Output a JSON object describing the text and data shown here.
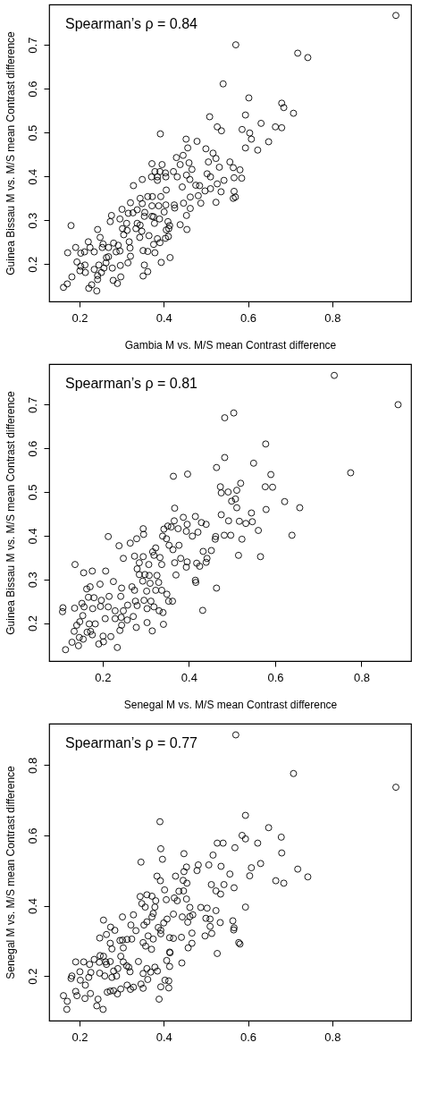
{
  "chart_data": [
    {
      "type": "scatter",
      "xlabel": "Gambia M vs. M/S mean Contrast difference",
      "ylabel": "Guinea Bissau M vs. M/S mean Contrast difference",
      "annotations": [
        "Spearman’s ρ = 0.84"
      ],
      "xlim": [
        0.128,
        0.987
      ],
      "ylim": [
        0.115,
        0.792
      ],
      "xticks": [
        0.2,
        0.4,
        0.6,
        0.8
      ],
      "yticks": [
        0.2,
        0.3,
        0.4,
        0.5,
        0.6,
        0.7
      ],
      "grid": false,
      "marker": "circle",
      "x": [
        0.951,
        0.571,
        0.718,
        0.742,
        0.541,
        0.602,
        0.68,
        0.685,
        0.708,
        0.594,
        0.509,
        0.631,
        0.527,
        0.537,
        0.665,
        0.68,
        0.586,
        0.604,
        0.392,
        0.608,
        0.649,
        0.623,
        0.594,
        0.453,
        0.479,
        0.457,
        0.5,
        0.517,
        0.524,
        0.506,
        0.532,
        0.446,
        0.43,
        0.439,
        0.46,
        0.467,
        0.557,
        0.565,
        0.581,
        0.585,
        0.567,
        0.543,
        0.527,
        0.503,
        0.511,
        0.498,
        0.511,
        0.536,
        0.567,
        0.565,
        0.57,
        0.524,
        0.488,
        0.482,
        0.476,
        0.485,
        0.463,
        0.463,
        0.454,
        0.455,
        0.439,
        0.447,
        0.444,
        0.462,
        0.454,
        0.432,
        0.423,
        0.406,
        0.404,
        0.396,
        0.405,
        0.385,
        0.371,
        0.379,
        0.372,
        0.349,
        0.328,
        0.385,
        0.391,
        0.344,
        0.362,
        0.373,
        0.393,
        0.349,
        0.372,
        0.388,
        0.405,
        0.425,
        0.426,
        0.401,
        0.39,
        0.376,
        0.372,
        0.355,
        0.354,
        0.378,
        0.337,
        0.321,
        0.327,
        0.301,
        0.316,
        0.276,
        0.273,
        0.296,
        0.312,
        0.337,
        0.313,
        0.302,
        0.305,
        0.318,
        0.32,
        0.321,
        0.315,
        0.297,
        0.298,
        0.28,
        0.29,
        0.278,
        0.287,
        0.281,
        0.292,
        0.296,
        0.269,
        0.263,
        0.269,
        0.256,
        0.249,
        0.243,
        0.254,
        0.235,
        0.225,
        0.221,
        0.212,
        0.203,
        0.191,
        0.172,
        0.18,
        0.194,
        0.203,
        0.213,
        0.214,
        0.201,
        0.182,
        0.171,
        0.162,
        0.222,
        0.229,
        0.241,
        0.243,
        0.235,
        0.246,
        0.252,
        0.243,
        0.258,
        0.264,
        0.344,
        0.343,
        0.365,
        0.362,
        0.351,
        0.354,
        0.362,
        0.351,
        0.376,
        0.379,
        0.385,
        0.391,
        0.394,
        0.404,
        0.411,
        0.415,
        0.412,
        0.414,
        0.41,
        0.406,
        0.348,
        0.334
      ],
      "series": [
        {
          "color": "#000000",
          "values": [
            0.767,
            0.7,
            0.681,
            0.671,
            0.611,
            0.579,
            0.567,
            0.557,
            0.544,
            0.54,
            0.536,
            0.521,
            0.513,
            0.504,
            0.513,
            0.511,
            0.507,
            0.499,
            0.497,
            0.485,
            0.479,
            0.46,
            0.465,
            0.485,
            0.48,
            0.465,
            0.463,
            0.453,
            0.441,
            0.433,
            0.421,
            0.448,
            0.443,
            0.427,
            0.431,
            0.416,
            0.433,
            0.42,
            0.415,
            0.396,
            0.397,
            0.391,
            0.383,
            0.406,
            0.399,
            0.367,
            0.372,
            0.365,
            0.366,
            0.35,
            0.353,
            0.341,
            0.339,
            0.356,
            0.38,
            0.379,
            0.353,
            0.327,
            0.311,
            0.279,
            0.29,
            0.339,
            0.376,
            0.393,
            0.403,
            0.399,
            0.411,
            0.369,
            0.408,
            0.427,
            0.399,
            0.399,
            0.399,
            0.411,
            0.429,
            0.393,
            0.379,
            0.391,
            0.411,
            0.35,
            0.354,
            0.354,
            0.354,
            0.338,
            0.333,
            0.333,
            0.335,
            0.335,
            0.328,
            0.319,
            0.303,
            0.308,
            0.309,
            0.318,
            0.309,
            0.293,
            0.324,
            0.34,
            0.317,
            0.325,
            0.316,
            0.311,
            0.297,
            0.303,
            0.293,
            0.293,
            0.277,
            0.281,
            0.267,
            0.251,
            0.237,
            0.218,
            0.203,
            0.197,
            0.171,
            0.163,
            0.156,
            0.191,
            0.228,
            0.248,
            0.243,
            0.23,
            0.217,
            0.203,
            0.238,
            0.246,
            0.261,
            0.279,
            0.238,
            0.228,
            0.238,
            0.251,
            0.228,
            0.225,
            0.238,
            0.226,
            0.288,
            0.205,
            0.195,
            0.198,
            0.181,
            0.185,
            0.171,
            0.155,
            0.147,
            0.145,
            0.153,
            0.139,
            0.165,
            0.188,
            0.198,
            0.181,
            0.174,
            0.191,
            0.215,
            0.289,
            0.261,
            0.265,
            0.229,
            0.231,
            0.198,
            0.183,
            0.173,
            0.245,
            0.226,
            0.258,
            0.249,
            0.204,
            0.259,
            0.263,
            0.215,
            0.281,
            0.288,
            0.297,
            0.278,
            0.275,
            0.281
          ]
        }
      ]
    },
    {
      "type": "scatter",
      "xlabel": "Senegal M vs. M/S mean Contrast difference",
      "ylabel": "Guinea Bissau M vs. M/S mean Contrast difference",
      "annotations": [
        "Spearman’s ρ = 0.81"
      ],
      "xlim": [
        0.076,
        0.915
      ],
      "ylim": [
        0.113,
        0.793
      ],
      "xticks": [
        0.2,
        0.4,
        0.6,
        0.8
      ],
      "yticks": [
        0.2,
        0.3,
        0.4,
        0.5,
        0.6,
        0.7
      ],
      "grid": false,
      "marker": "circle",
      "x": [
        0.737,
        0.885,
        0.504,
        0.483,
        0.578,
        0.483,
        0.55,
        0.464,
        0.775,
        0.364,
        0.397,
        0.59,
        0.52,
        0.473,
        0.577,
        0.594,
        0.511,
        0.491,
        0.475,
        0.508,
        0.499,
        0.622,
        0.511,
        0.579,
        0.657,
        0.545,
        0.475,
        0.492,
        0.517,
        0.532,
        0.547,
        0.561,
        0.639,
        0.482,
        0.497,
        0.523,
        0.461,
        0.462,
        0.452,
        0.433,
        0.442,
        0.44,
        0.425,
        0.515,
        0.566,
        0.464,
        0.432,
        0.416,
        0.415,
        0.415,
        0.44,
        0.429,
        0.421,
        0.408,
        0.396,
        0.394,
        0.387,
        0.366,
        0.367,
        0.351,
        0.359,
        0.375,
        0.377,
        0.363,
        0.354,
        0.348,
        0.339,
        0.342,
        0.381,
        0.367,
        0.37,
        0.396,
        0.394,
        0.418,
        0.337,
        0.323,
        0.316,
        0.319,
        0.333,
        0.294,
        0.295,
        0.279,
        0.264,
        0.238,
        0.213,
        0.248,
        0.274,
        0.294,
        0.285,
        0.307,
        0.28,
        0.285,
        0.298,
        0.308,
        0.326,
        0.31,
        0.33,
        0.337,
        0.323,
        0.302,
        0.293,
        0.268,
        0.274,
        0.276,
        0.258,
        0.28,
        0.296,
        0.312,
        0.319,
        0.303,
        0.331,
        0.34,
        0.349,
        0.353,
        0.362,
        0.341,
        0.315,
        0.303,
        0.278,
        0.271,
        0.257,
        0.248,
        0.229,
        0.244,
        0.225,
        0.242,
        0.207,
        0.176,
        0.156,
        0.136,
        0.171,
        0.194,
        0.163,
        0.167,
        0.18,
        0.197,
        0.215,
        0.213,
        0.177,
        0.195,
        0.157,
        0.152,
        0.135,
        0.108,
        0.107,
        0.134,
        0.14,
        0.154,
        0.169,
        0.147,
        0.146,
        0.129,
        0.114,
        0.144,
        0.155,
        0.164,
        0.172,
        0.176,
        0.183,
        0.191,
        0.202,
        0.201,
        0.206,
        0.219,
        0.234,
        0.24,
        0.244,
        0.243,
        0.229
      ],
      "series": [
        {
          "color": "#000000",
          "values": [
            0.767,
            0.7,
            0.681,
            0.67,
            0.61,
            0.579,
            0.566,
            0.556,
            0.544,
            0.536,
            0.541,
            0.54,
            0.52,
            0.512,
            0.512,
            0.511,
            0.504,
            0.5,
            0.498,
            0.484,
            0.479,
            0.478,
            0.464,
            0.46,
            0.464,
            0.452,
            0.448,
            0.434,
            0.433,
            0.428,
            0.432,
            0.412,
            0.401,
            0.401,
            0.401,
            0.392,
            0.392,
            0.398,
            0.366,
            0.364,
            0.348,
            0.339,
            0.33,
            0.355,
            0.352,
            0.28,
            0.229,
            0.293,
            0.298,
            0.444,
            0.426,
            0.43,
            0.408,
            0.399,
            0.426,
            0.41,
            0.442,
            0.434,
            0.463,
            0.422,
            0.42,
            0.416,
            0.378,
            0.368,
            0.378,
            0.393,
            0.399,
            0.415,
            0.348,
            0.338,
            0.31,
            0.34,
            0.328,
            0.337,
            0.334,
            0.372,
            0.363,
            0.355,
            0.35,
            0.416,
            0.403,
            0.393,
            0.383,
            0.377,
            0.398,
            0.348,
            0.353,
            0.352,
            0.338,
            0.334,
            0.324,
            0.311,
            0.311,
            0.309,
            0.309,
            0.291,
            0.293,
            0.275,
            0.275,
            0.273,
            0.296,
            0.283,
            0.275,
            0.25,
            0.241,
            0.24,
            0.252,
            0.25,
            0.237,
            0.233,
            0.228,
            0.224,
            0.266,
            0.25,
            0.25,
            0.197,
            0.182,
            0.201,
            0.19,
            0.215,
            0.207,
            0.228,
            0.228,
            0.28,
            0.295,
            0.261,
            0.319,
            0.319,
            0.315,
            0.334,
            0.283,
            0.289,
            0.278,
            0.259,
            0.258,
            0.252,
            0.261,
            0.237,
            0.233,
            0.238,
            0.237,
            0.245,
            0.234,
            0.235,
            0.226,
            0.181,
            0.195,
            0.217,
            0.198,
            0.203,
            0.167,
            0.156,
            0.139,
            0.148,
            0.163,
            0.179,
            0.181,
            0.173,
            0.198,
            0.152,
            0.157,
            0.17,
            0.21,
            0.169,
            0.144,
            0.183,
            0.195,
            0.213,
            0.21
          ]
        }
      ]
    },
    {
      "type": "scatter",
      "ylabel": "Senegal M vs. M/S mean Contrast difference",
      "annotations": [
        "Spearman’s ρ = 0.77"
      ],
      "xlim": [
        0.128,
        0.987
      ],
      "ylim": [
        0.073,
        0.918
      ],
      "xticks": [
        0.2,
        0.4,
        0.6,
        0.8
      ],
      "yticks": [
        0.2,
        0.4,
        0.6,
        0.8
      ],
      "grid": false,
      "marker": "circle",
      "x": [
        0.571,
        0.708,
        0.951,
        0.594,
        0.391,
        0.649,
        0.586,
        0.594,
        0.679,
        0.623,
        0.527,
        0.541,
        0.569,
        0.68,
        0.393,
        0.448,
        0.517,
        0.346,
        0.397,
        0.507,
        0.482,
        0.63,
        0.608,
        0.718,
        0.536,
        0.454,
        0.479,
        0.448,
        0.604,
        0.742,
        0.557,
        0.384,
        0.428,
        0.392,
        0.666,
        0.685,
        0.446,
        0.455,
        0.513,
        0.543,
        0.567,
        0.524,
        0.535,
        0.447,
        0.436,
        0.402,
        0.425,
        0.432,
        0.454,
        0.406,
        0.344,
        0.36,
        0.372,
        0.381,
        0.348,
        0.356,
        0.379,
        0.375,
        0.372,
        0.423,
        0.462,
        0.488,
        0.503,
        0.594,
        0.524,
        0.444,
        0.469,
        0.5,
        0.51,
        0.564,
        0.567,
        0.566,
        0.534,
        0.51,
        0.514,
        0.498,
        0.467,
        0.457,
        0.462,
        0.408,
        0.4,
        0.393,
        0.387,
        0.375,
        0.393,
        0.414,
        0.423,
        0.442,
        0.467,
        0.458,
        0.578,
        0.581,
        0.527,
        0.443,
        0.414,
        0.415,
        0.407,
        0.414,
        0.403,
        0.412,
        0.412,
        0.393,
        0.389,
        0.385,
        0.379,
        0.369,
        0.36,
        0.362,
        0.351,
        0.346,
        0.351,
        0.328,
        0.321,
        0.313,
        0.298,
        0.29,
        0.281,
        0.273,
        0.266,
        0.256,
        0.241,
        0.244,
        0.226,
        0.213,
        0.191,
        0.194,
        0.17,
        0.171,
        0.162,
        0.18,
        0.182,
        0.191,
        0.201,
        0.202,
        0.214,
        0.222,
        0.227,
        0.224,
        0.21,
        0.235,
        0.249,
        0.247,
        0.257,
        0.262,
        0.264,
        0.26,
        0.248,
        0.248,
        0.257,
        0.264,
        0.274,
        0.284,
        0.273,
        0.277,
        0.296,
        0.302,
        0.302,
        0.304,
        0.298,
        0.304,
        0.313,
        0.324,
        0.328,
        0.322,
        0.334,
        0.34,
        0.317,
        0.32,
        0.312,
        0.353,
        0.36,
        0.351,
        0.357,
        0.363,
        0.371,
        0.291,
        0.281,
        0.288,
        0.277,
        0.273
      ],
      "series": [
        {
          "color": "#000000",
          "values": [
            0.886,
            0.776,
            0.737,
            0.657,
            0.639,
            0.622,
            0.6,
            0.59,
            0.595,
            0.578,
            0.578,
            0.578,
            0.565,
            0.55,
            0.562,
            0.548,
            0.544,
            0.524,
            0.532,
            0.516,
            0.516,
            0.52,
            0.508,
            0.504,
            0.512,
            0.51,
            0.5,
            0.497,
            0.485,
            0.482,
            0.49,
            0.484,
            0.484,
            0.471,
            0.471,
            0.464,
            0.472,
            0.464,
            0.46,
            0.46,
            0.451,
            0.442,
            0.433,
            0.442,
            0.441,
            0.445,
            0.422,
            0.414,
            0.419,
            0.417,
            0.426,
            0.431,
            0.427,
            0.414,
            0.406,
            0.396,
            0.396,
            0.378,
            0.368,
            0.376,
            0.395,
            0.395,
            0.393,
            0.396,
            0.386,
            0.368,
            0.374,
            0.364,
            0.362,
            0.357,
            0.337,
            0.331,
            0.352,
            0.341,
            0.321,
            0.314,
            0.322,
            0.353,
            0.369,
            0.362,
            0.351,
            0.33,
            0.338,
            0.305,
            0.32,
            0.309,
            0.307,
            0.31,
            0.293,
            0.28,
            0.295,
            0.291,
            0.264,
            0.237,
            0.268,
            0.266,
            0.244,
            0.227,
            0.188,
            0.186,
            0.166,
            0.169,
            0.134,
            0.214,
            0.225,
            0.211,
            0.221,
            0.19,
            0.207,
            0.177,
            0.165,
            0.168,
            0.162,
            0.174,
            0.163,
            0.149,
            0.158,
            0.157,
            0.154,
            0.105,
            0.115,
            0.134,
            0.15,
            0.136,
            0.156,
            0.144,
            0.105,
            0.128,
            0.144,
            0.193,
            0.2,
            0.24,
            0.212,
            0.188,
            0.174,
            0.196,
            0.21,
            0.233,
            0.24,
            0.247,
            0.258,
            0.239,
            0.256,
            0.24,
            0.233,
            0.2,
            0.208,
            0.308,
            0.359,
            0.318,
            0.339,
            0.33,
            0.293,
            0.277,
            0.301,
            0.368,
            0.302,
            0.28,
            0.256,
            0.24,
            0.304,
            0.305,
            0.374,
            0.345,
            0.329,
            0.241,
            0.225,
            0.212,
            0.229,
            0.345,
            0.354,
            0.295,
            0.285,
            0.314,
            0.276,
            0.221,
            0.214,
            0.2,
            0.196,
            0.241
          ]
        }
      ]
    }
  ]
}
